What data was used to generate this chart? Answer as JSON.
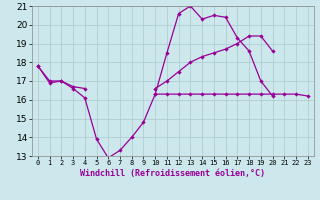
{
  "xlabel": "Windchill (Refroidissement éolien,°C)",
  "background_color": "#cce8ec",
  "grid_color": "#aac8cc",
  "line_color": "#990099",
  "x_hours": [
    0,
    1,
    2,
    3,
    4,
    5,
    6,
    7,
    8,
    9,
    10,
    11,
    12,
    13,
    14,
    15,
    16,
    17,
    18,
    19,
    20,
    21,
    22,
    23
  ],
  "series_dip": [
    17.8,
    16.9,
    17.0,
    16.6,
    16.1,
    13.9,
    12.9,
    13.3,
    14.0,
    14.8,
    16.3,
    18.5,
    20.6,
    21.0,
    20.3,
    20.5,
    20.4,
    19.3,
    18.6,
    17.0,
    16.2,
    null,
    null,
    null
  ],
  "series_flat": [
    null,
    null,
    null,
    null,
    null,
    null,
    null,
    null,
    null,
    null,
    16.3,
    16.3,
    16.3,
    16.3,
    16.3,
    16.3,
    16.3,
    16.3,
    16.3,
    16.3,
    16.3,
    16.3,
    16.3,
    16.2
  ],
  "series_rise": [
    17.8,
    17.0,
    17.0,
    16.7,
    16.6,
    null,
    null,
    null,
    null,
    null,
    16.6,
    17.0,
    17.5,
    18.0,
    18.3,
    18.5,
    18.7,
    19.0,
    19.4,
    19.4,
    18.6,
    null,
    null,
    null
  ],
  "xlim": [
    -0.5,
    23.5
  ],
  "ylim": [
    13,
    21
  ],
  "yticks": [
    13,
    14,
    15,
    16,
    17,
    18,
    19,
    20,
    21
  ],
  "xtick_labels": [
    "0",
    "1",
    "2",
    "3",
    "4",
    "5",
    "6",
    "7",
    "8",
    "9",
    "10",
    "11",
    "12",
    "13",
    "14",
    "15",
    "16",
    "17",
    "18",
    "19",
    "20",
    "21",
    "22",
    "23"
  ],
  "xlabel_color": "#990099",
  "xlabel_fontsize": 6.0,
  "ytick_fontsize": 6.5,
  "xtick_fontsize": 5.0,
  "linewidth": 0.9,
  "markersize": 2.2
}
